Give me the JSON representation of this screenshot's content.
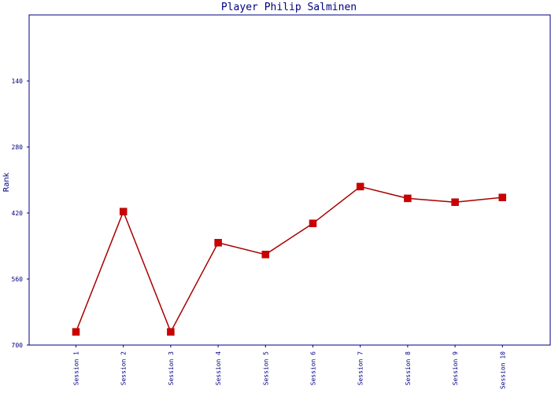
{
  "chart_data": {
    "type": "line",
    "title": "Player Philip Salminen",
    "xlabel": "",
    "ylabel": "Rank",
    "categories": [
      "Session 1",
      "Session 2",
      "Session 3",
      "Session 4",
      "Session 5",
      "Session 6",
      "Session 7",
      "Session 8",
      "Session 9",
      "Session 10"
    ],
    "y_ticks": [
      "140",
      "280",
      "420",
      "560",
      "700"
    ],
    "ylim": [
      0,
      700
    ],
    "y_inverted": true,
    "series": [
      {
        "values": [
          672,
          417,
          672,
          483,
          508,
          442,
          364,
          389,
          397,
          387
        ]
      }
    ],
    "colors": {
      "line": "#aa0000",
      "marker": "#cc0000",
      "axes": "#000080"
    },
    "grid": false
  }
}
